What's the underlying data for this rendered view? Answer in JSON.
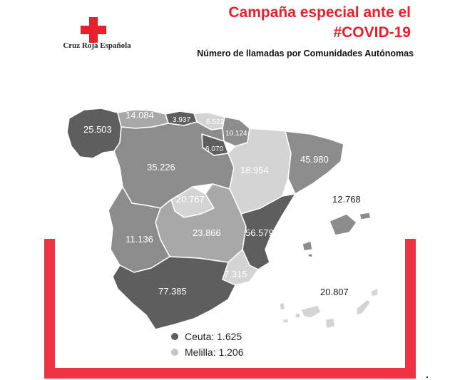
{
  "org": {
    "name": "Cruz Roja Española"
  },
  "header": {
    "title_line1": "Campaña especial ante el",
    "title_line2": "#COVID-19",
    "subtitle": "Número de llamadas por Comunidades Autónomas"
  },
  "colors": {
    "brand_red": "#e8202b",
    "frame_red": "#f03342",
    "dark": "#5e5e5e",
    "mid": "#8c8c8c",
    "light": "#a8a8a8",
    "lighter": "#d4d4d4"
  },
  "regions": [
    {
      "id": "galicia",
      "value": "25.503",
      "shade": "dark"
    },
    {
      "id": "asturias",
      "value": "14.084",
      "shade": "light"
    },
    {
      "id": "cantabria",
      "value": "3.937",
      "shade": "dark"
    },
    {
      "id": "pais-vasco",
      "value": "6.522",
      "shade": "lighter"
    },
    {
      "id": "navarra",
      "value": "10.124",
      "shade": "mid"
    },
    {
      "id": "la-rioja",
      "value": "6.070",
      "shade": "dark"
    },
    {
      "id": "castilla-y-leon",
      "value": "35.226",
      "shade": "mid"
    },
    {
      "id": "aragon",
      "value": "18.954",
      "shade": "lighter"
    },
    {
      "id": "cataluna",
      "value": "45.980",
      "shade": "mid"
    },
    {
      "id": "madrid",
      "value": "20.767",
      "shade": "lighter"
    },
    {
      "id": "extremadura",
      "value": "11.136",
      "shade": "mid"
    },
    {
      "id": "castilla-la-mancha",
      "value": "23.866",
      "shade": "light"
    },
    {
      "id": "comunitat-valenciana",
      "value": "56.579",
      "shade": "dark"
    },
    {
      "id": "murcia",
      "value": "7.315",
      "shade": "lighter"
    },
    {
      "id": "andalucia",
      "value": "77.385",
      "shade": "dark"
    },
    {
      "id": "baleares",
      "value": "12.768",
      "shade": "mid"
    },
    {
      "id": "canarias",
      "value": "20.807",
      "shade": "lighter"
    }
  ],
  "legend": [
    {
      "label": "Ceuta: 1.625",
      "color": "#5e5e5e"
    },
    {
      "label": "Melilla: 1.206",
      "color": "#c4c4c4"
    }
  ]
}
